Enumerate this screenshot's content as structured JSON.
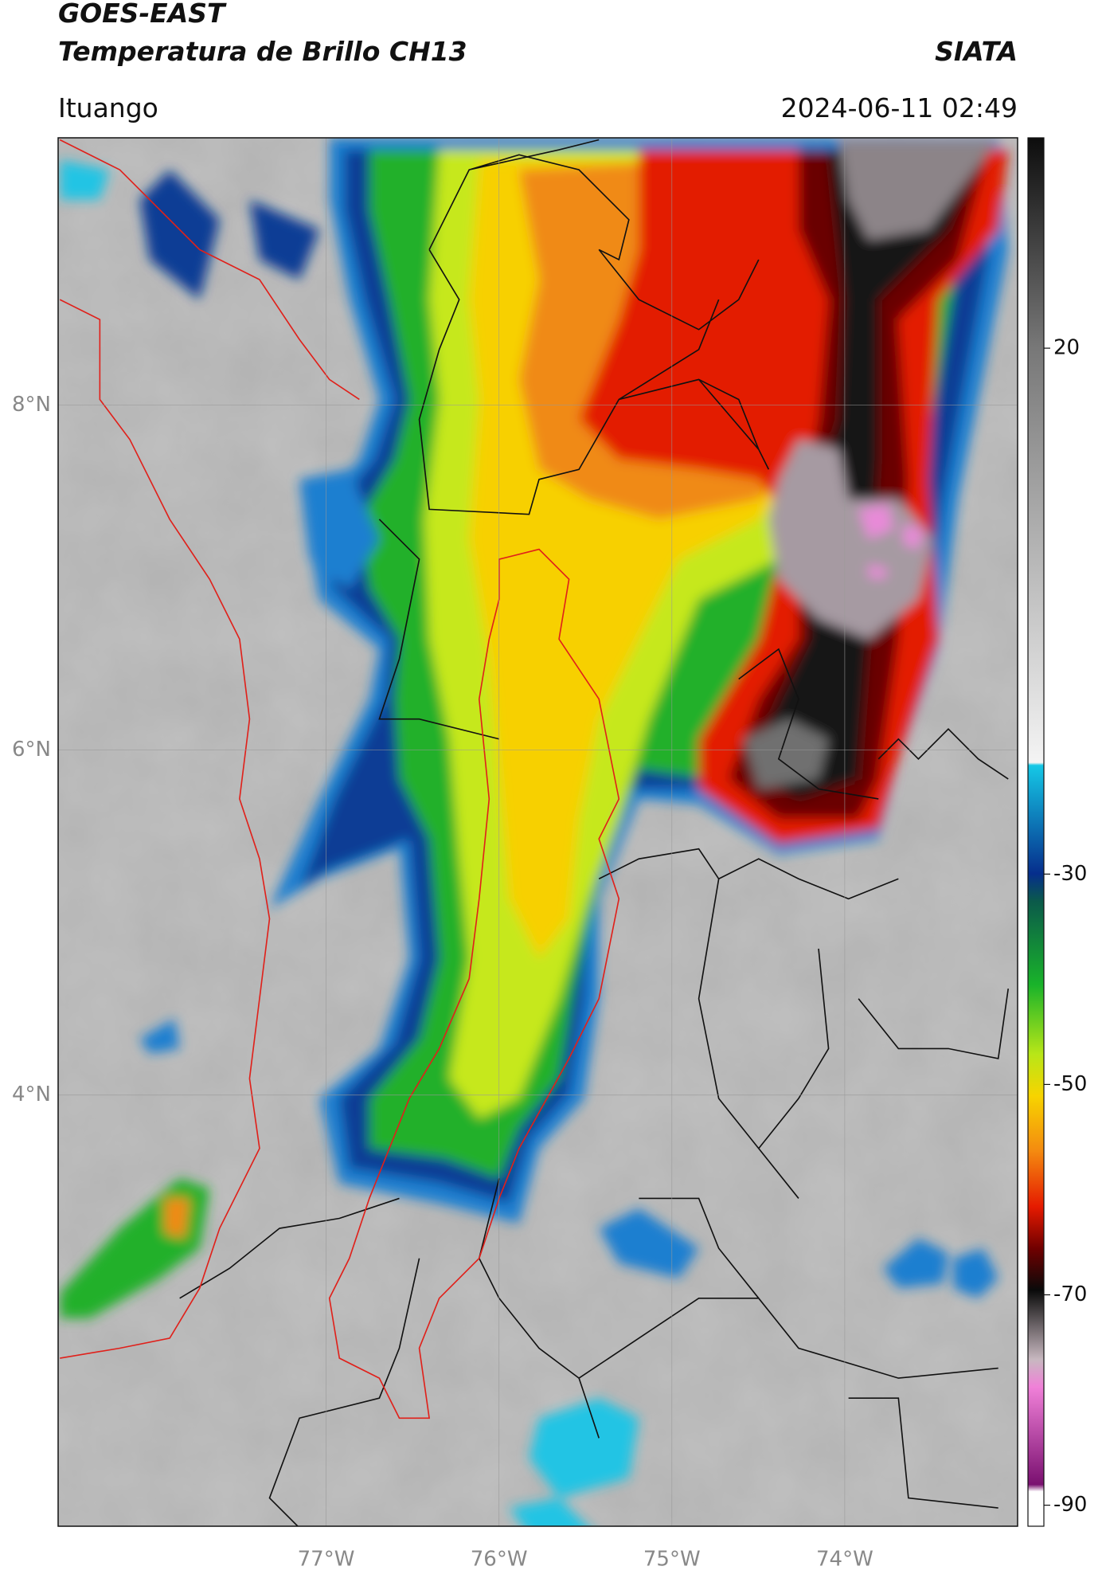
{
  "header": {
    "title": "GOES-EAST",
    "subtitle": "Temperatura de Brillo CH13",
    "source": "SIATA",
    "location": "Ituango",
    "datetime": "2024-06-11 02:49"
  },
  "map": {
    "lonlim": [
      -78.55,
      -73.0
    ],
    "latlim": [
      1.5,
      9.55
    ],
    "lonticks": [
      {
        "value": -77,
        "label": "77°W"
      },
      {
        "value": -76,
        "label": "76°W"
      },
      {
        "value": -75,
        "label": "75°W"
      },
      {
        "value": -74,
        "label": "74°W"
      }
    ],
    "latticks": [
      {
        "value": 8,
        "label": "8°N"
      },
      {
        "value": 6,
        "label": "6°N"
      },
      {
        "value": 4,
        "label": "4°N"
      }
    ],
    "grid": true
  },
  "colorbar": {
    "lim": [
      -92,
      40
    ],
    "ticks": [
      20,
      -30,
      -50,
      -70,
      -90
    ]
  }
}
